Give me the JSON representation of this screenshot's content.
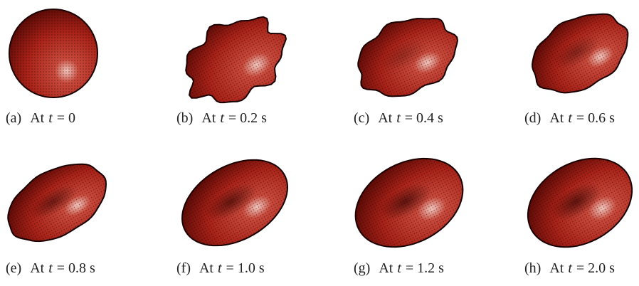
{
  "panels": [
    {
      "label": "(a)",
      "prefix": "At",
      "variable": "t",
      "value": "= 0"
    },
    {
      "label": "(b)",
      "prefix": "At",
      "variable": "t",
      "value": "= 0.2 s"
    },
    {
      "label": "(c)",
      "prefix": "At",
      "variable": "t",
      "value": "= 0.4 s"
    },
    {
      "label": "(d)",
      "prefix": "At",
      "variable": "t",
      "value": "= 0.6 s"
    },
    {
      "label": "(e)",
      "prefix": "At",
      "variable": "t",
      "value": "= 0.8 s"
    },
    {
      "label": "(f)",
      "prefix": "At",
      "variable": "t",
      "value": "= 1.0 s"
    },
    {
      "label": "(g)",
      "prefix": "At",
      "variable": "t",
      "value": "= 1.2 s"
    },
    {
      "label": "(h)",
      "prefix": "At",
      "variable": "t",
      "value": "= 2.0 s"
    }
  ]
}
